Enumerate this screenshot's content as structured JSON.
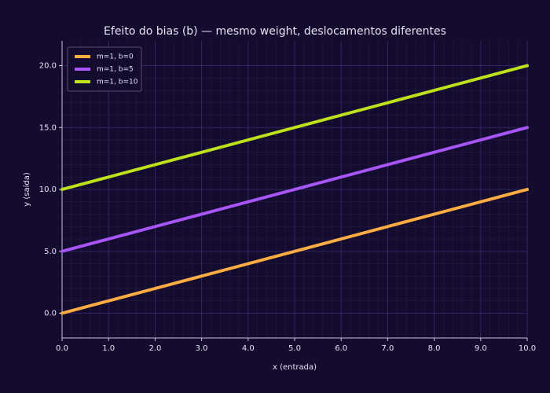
{
  "chart_data": {
    "type": "line",
    "title": "Efeito do bias (b) — mesmo weight, deslocamentos diferentes",
    "x_label": "x (entrada)",
    "y_label": "y (saída)",
    "x": [
      0,
      1,
      2,
      3,
      4,
      5,
      6,
      7,
      8,
      9,
      10
    ],
    "series": [
      {
        "name": "m=1, b=0",
        "color": "#ffad42",
        "values": [
          0,
          1,
          2,
          3,
          4,
          5,
          6,
          7,
          8,
          9,
          10
        ]
      },
      {
        "name": "m=1, b=5",
        "color": "#a855f7",
        "values": [
          5,
          6,
          7,
          8,
          9,
          10,
          11,
          12,
          13,
          14,
          15
        ]
      },
      {
        "name": "m=1, b=10",
        "color": "#bde21b",
        "values": [
          10,
          11,
          12,
          13,
          14,
          15,
          16,
          17,
          18,
          19,
          20
        ]
      }
    ],
    "xlim": [
      0,
      10
    ],
    "ylim": [
      -2,
      22
    ],
    "xticks": [
      {
        "value": 0,
        "label": "0.0"
      },
      {
        "value": 1,
        "label": "1.0"
      },
      {
        "value": 2,
        "label": "2.0"
      },
      {
        "value": 3,
        "label": "3.0"
      },
      {
        "value": 4,
        "label": "4.0"
      },
      {
        "value": 5,
        "label": "5.0"
      },
      {
        "value": 6,
        "label": "6.0"
      },
      {
        "value": 7,
        "label": "7.0"
      },
      {
        "value": 8,
        "label": "8.0"
      },
      {
        "value": 9,
        "label": "9.0"
      },
      {
        "value": 10,
        "label": "10.0"
      }
    ],
    "yticks": [
      {
        "value": 0,
        "label": "0.0"
      },
      {
        "value": 5,
        "label": "5.0"
      },
      {
        "value": 10,
        "label": "10.0"
      },
      {
        "value": 15,
        "label": "15.0"
      },
      {
        "value": 20,
        "label": "20.0"
      }
    ],
    "grid": true,
    "minor_grid": true,
    "legend": "upper-left"
  }
}
